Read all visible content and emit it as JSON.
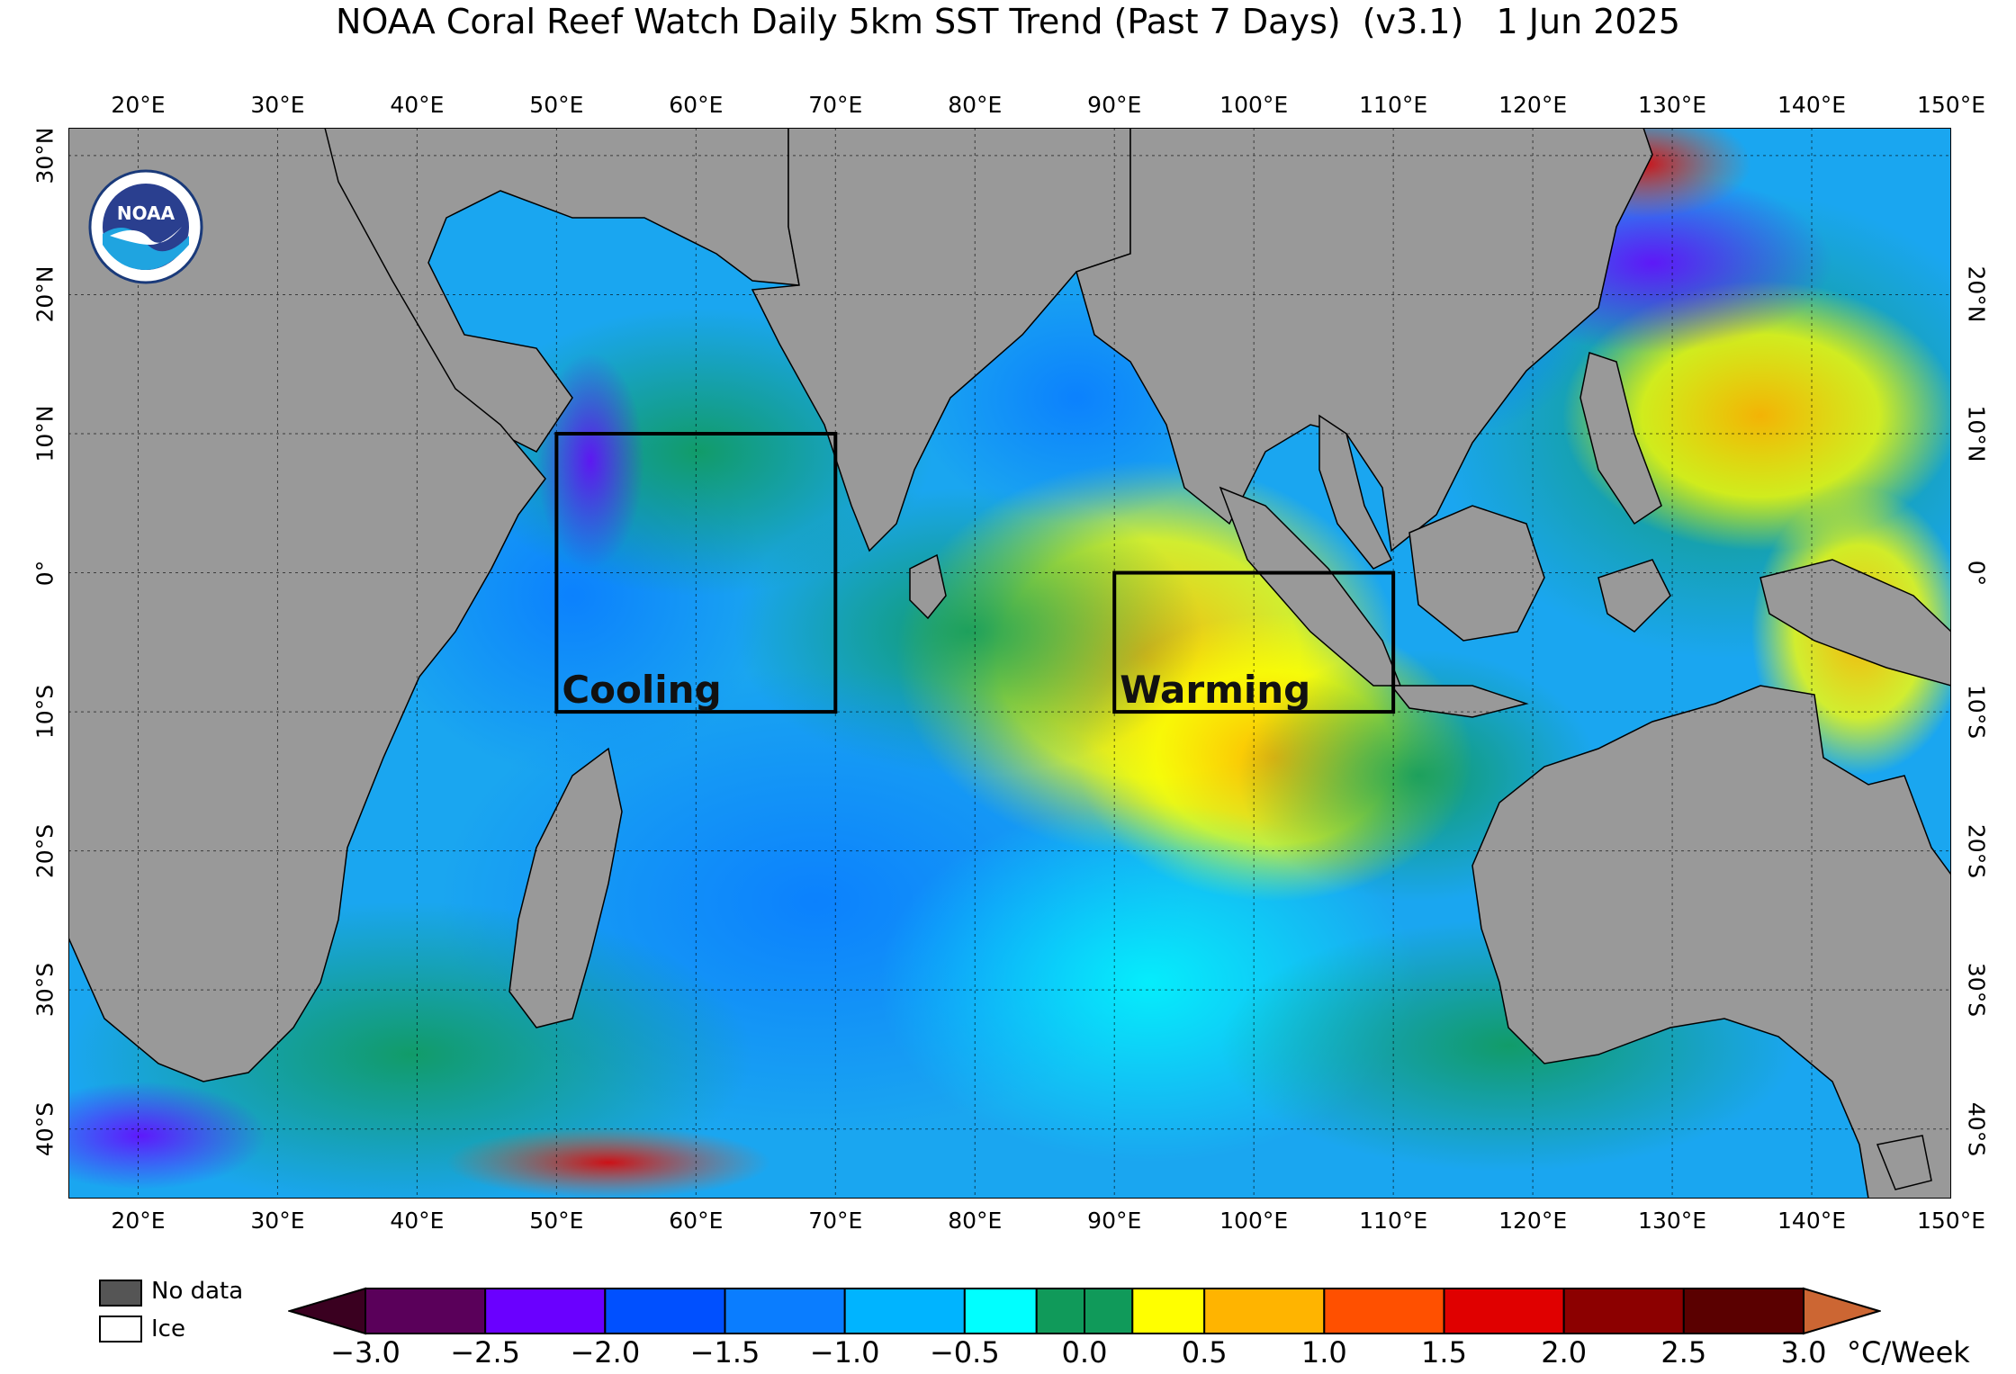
{
  "title": "NOAA Coral Reef Watch Daily 5km SST Trend (Past 7 Days)  (v3.1)   1 Jun 2025",
  "logo": {
    "text": "NOAA",
    "icon": "noaa-logo"
  },
  "lon_labels": [
    "20°E",
    "30°E",
    "40°E",
    "50°E",
    "60°E",
    "70°E",
    "80°E",
    "90°E",
    "100°E",
    "110°E",
    "120°E",
    "130°E",
    "140°E",
    "150°E"
  ],
  "lon_values": [
    20,
    30,
    40,
    50,
    60,
    70,
    80,
    90,
    100,
    110,
    120,
    130,
    140,
    150
  ],
  "lat_labels_left": [
    "30°N",
    "20°N",
    "10°N",
    "0°",
    "10°S",
    "20°S",
    "30°S",
    "40°S"
  ],
  "lat_labels_right": [
    "20°N",
    "10°N",
    "0°",
    "10°S",
    "20°S",
    "30°S",
    "40°S"
  ],
  "lat_values_left": [
    30,
    20,
    10,
    0,
    -10,
    -20,
    -30,
    -40
  ],
  "lat_values_right": [
    20,
    10,
    0,
    -10,
    -20,
    -30,
    -40
  ],
  "extent": {
    "lon_min": 15,
    "lon_max": 150,
    "lat_min": -45,
    "lat_max": 32
  },
  "boxes": [
    {
      "label": "Cooling",
      "lon": [
        50,
        70
      ],
      "lat": [
        -10,
        10
      ]
    },
    {
      "label": "Warming",
      "lon": [
        90,
        110
      ],
      "lat": [
        -10,
        0
      ]
    }
  ],
  "legend": {
    "no_data": "No data",
    "ice": "Ice",
    "no_data_color": "#555555",
    "ice_color": "#ffffff"
  },
  "colorbar": {
    "unit": "°C/Week",
    "ticks": [
      "−3.0",
      "−2.5",
      "−2.0",
      "−1.5",
      "−1.0",
      "−0.5",
      "0.0",
      "0.5",
      "1.0",
      "1.5",
      "2.0",
      "2.5",
      "3.0"
    ],
    "tick_values": [
      -3.0,
      -2.5,
      -2.0,
      -1.5,
      -1.0,
      -0.5,
      0.0,
      0.5,
      1.0,
      1.5,
      2.0,
      2.5,
      3.0
    ],
    "colors": [
      "#5a005a",
      "#6a00ff",
      "#0050ff",
      "#0a7dff",
      "#00b4ff",
      "#00ffff",
      "#109a5a",
      "#ffff00",
      "#ffb400",
      "#ff5000",
      "#e00000",
      "#8c0000",
      "#5a0000"
    ],
    "under_color": "#3a0020",
    "over_color": "#cc6633"
  },
  "colors": {
    "land": "#999999",
    "ocean_base": "#1aa6f0"
  }
}
